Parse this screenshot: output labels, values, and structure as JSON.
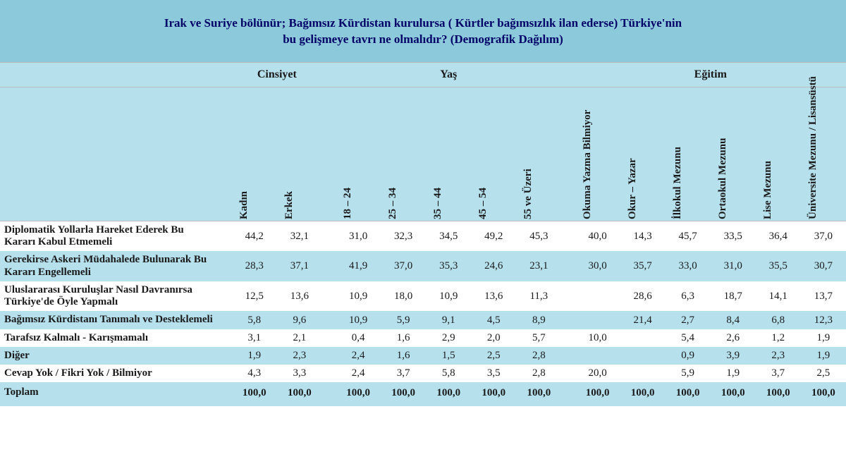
{
  "colors": {
    "title_bg": "#8cc9da",
    "header_bg": "#b5e0ec",
    "stripe_bg": "#b5e0ec",
    "text": "#1a1a1a",
    "title_text": "#000066",
    "border": "#bbbbbb"
  },
  "typography": {
    "title_fontsize": 17,
    "header_fontsize": 16,
    "rot_fontsize": 15,
    "cell_fontsize": 15,
    "row_label_fontsize": 15
  },
  "title_line1": "Irak ve Suriye bölünür; Bağımsız Kürdistan kurulursa ( Kürtler bağımsızlık ilan ederse) Türkiye'nin",
  "title_line2": "bu gelişmeye tavrı ne olmalıdır? (Demografik Dağılım)",
  "groups": {
    "g1": "Cinsiyet",
    "g2": "Yaş",
    "g3": "Eğitim"
  },
  "cols": {
    "c0": "Kadın",
    "c1": "Erkek",
    "c2": "18 – 24",
    "c3": "25 – 34",
    "c4": "35 – 44",
    "c5": "45 – 54",
    "c6": "55 ve Üzeri",
    "c7": "Okuma Yazma Bilmiyor",
    "c8": "Okur – Yazar",
    "c9": "İlkokul Mezunu",
    "c10": "Ortaokul Mezunu",
    "c11": "Lise Mezunu",
    "c12": "Üniversite Mezunu / Lisansüstü"
  },
  "rows": [
    {
      "label": "Diplomatik Yollarla Hareket Ederek Bu Kararı Kabul Etmemeli",
      "v": [
        "44,2",
        "32,1",
        "31,0",
        "32,3",
        "34,5",
        "49,2",
        "45,3",
        "40,0",
        "14,3",
        "45,7",
        "33,5",
        "36,4",
        "37,0"
      ]
    },
    {
      "label": "Gerekirse Askeri Müdahalede Bulunarak Bu Kararı Engellemeli",
      "v": [
        "28,3",
        "37,1",
        "41,9",
        "37,0",
        "35,3",
        "24,6",
        "23,1",
        "30,0",
        "35,7",
        "33,0",
        "31,0",
        "35,5",
        "30,7"
      ]
    },
    {
      "label": "Uluslararası Kuruluşlar Nasıl Davranırsa Türkiye'de Öyle Yapmalı",
      "v": [
        "12,5",
        "13,6",
        "10,9",
        "18,0",
        "10,9",
        "13,6",
        "11,3",
        "",
        "28,6",
        "6,3",
        "18,7",
        "14,1",
        "13,7"
      ]
    },
    {
      "label": "Bağımsız Kürdistanı Tanımalı ve Desteklemeli",
      "v": [
        "5,8",
        "9,6",
        "10,9",
        "5,9",
        "9,1",
        "4,5",
        "8,9",
        "",
        "21,4",
        "2,7",
        "8,4",
        "6,8",
        "12,3"
      ]
    },
    {
      "label": "Tarafsız Kalmalı - Karışmamalı",
      "v": [
        "3,1",
        "2,1",
        "0,4",
        "1,6",
        "2,9",
        "2,0",
        "5,7",
        "10,0",
        "",
        "5,4",
        "2,6",
        "1,2",
        "1,9"
      ]
    },
    {
      "label": "Diğer",
      "v": [
        "1,9",
        "2,3",
        "2,4",
        "1,6",
        "1,5",
        "2,5",
        "2,8",
        "",
        "",
        "0,9",
        "3,9",
        "2,3",
        "1,9"
      ]
    },
    {
      "label": "Cevap Yok / Fikri Yok / Bilmiyor",
      "v": [
        "4,3",
        "3,3",
        "2,4",
        "3,7",
        "5,8",
        "3,5",
        "2,8",
        "20,0",
        "",
        "5,9",
        "1,9",
        "3,7",
        "2,5"
      ]
    }
  ],
  "total": {
    "label": "Toplam",
    "v": [
      "100,0",
      "100,0",
      "100,0",
      "100,0",
      "100,0",
      "100,0",
      "100,0",
      "100,0",
      "100,0",
      "100,0",
      "100,0",
      "100,0",
      "100,0"
    ]
  }
}
